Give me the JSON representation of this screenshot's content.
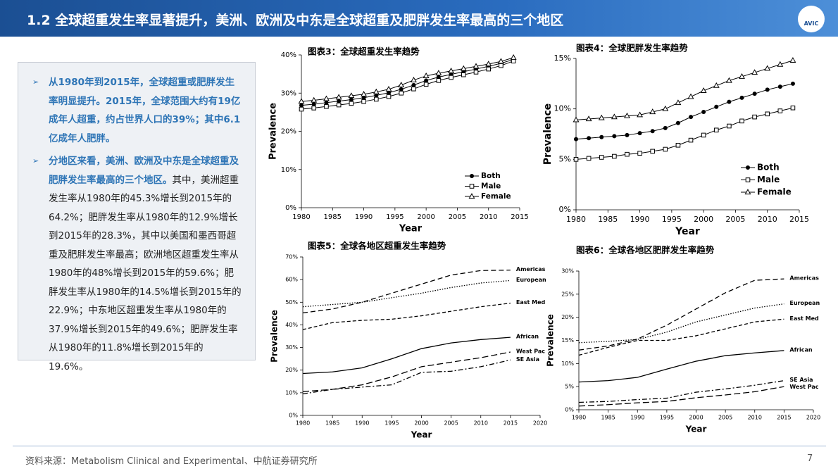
{
  "header": {
    "title": "1.2 全球超重发生率显著提升，美洲、欧洲及中东是全球超重及肥胖发生率最高的三个地区",
    "logo_text": "AVIC"
  },
  "summary": {
    "bullets": [
      {
        "runs": [
          {
            "text": "从1980年到2015年，全球超重或肥胖发生率明显提升。2015年，全球范围大约有19亿成年人超重，约占世界人口的39%；其中6.1亿成年人肥胖。",
            "bold": true
          }
        ]
      },
      {
        "runs": [
          {
            "text": "分地区来看，美洲、欧洲及中东是全球超重及肥胖发生率最高的三个地区。",
            "bold": true
          },
          {
            "text": "其中，美洲超重发生率从1980年的45.3%增长到2015年的64.2%；肥胖发生率从1980年的12.9%增长到2015年的28.3%，其中以美国和墨西哥超重及肥胖发生率最高；欧洲地区超重发生率从1980年的48%增长到2015年的59.6%；肥胖发生率从1980年的14.5%增长到2015年的22.9%；中东地区超重发生率从1980年的37.9%增长到2015年的49.6%；肥胖发生率从1980年的11.8%增长到2015年的19.6%。",
            "bold": false
          }
        ]
      }
    ]
  },
  "chart_data": [
    {
      "type": "line",
      "title": "图表3：全球超重发生率趋势",
      "xlabel": "Year",
      "ylabel": "Prevalence",
      "legend": "lower right",
      "x": [
        1980,
        1982,
        1984,
        1986,
        1988,
        1990,
        1992,
        1994,
        1996,
        1998,
        2000,
        2002,
        2004,
        2006,
        2008,
        2010,
        2012,
        2014
      ],
      "xlim": [
        1980,
        2015
      ],
      "xticks": [
        1980,
        1985,
        1990,
        1995,
        2000,
        2005,
        2010,
        2015
      ],
      "ylim": [
        0,
        40
      ],
      "yticks": [
        {
          "value": 0,
          "label": "0%"
        },
        {
          "value": 10,
          "label": "10%"
        },
        {
          "value": 20,
          "label": "20%"
        },
        {
          "value": 30,
          "label": "30%"
        },
        {
          "value": 40,
          "label": "40%"
        }
      ],
      "series": [
        {
          "name": "Both",
          "color": "#000000",
          "marker": "filled-circle",
          "values": [
            26.8,
            27.1,
            27.5,
            27.9,
            28.3,
            28.8,
            29.4,
            30.1,
            31.0,
            32.1,
            33.3,
            34.2,
            34.9,
            35.6,
            36.3,
            37.0,
            37.8,
            38.8
          ]
        },
        {
          "name": "Male",
          "color": "#000000",
          "marker": "open-square",
          "values": [
            25.8,
            26.1,
            26.5,
            26.9,
            27.3,
            27.8,
            28.4,
            29.1,
            30.0,
            31.1,
            32.3,
            33.3,
            34.1,
            34.8,
            35.5,
            36.3,
            37.2,
            38.4
          ]
        },
        {
          "name": "Female",
          "color": "#000000",
          "marker": "open-triangle",
          "values": [
            27.8,
            28.1,
            28.5,
            28.9,
            29.3,
            29.7,
            30.3,
            31.0,
            32.1,
            33.4,
            34.5,
            35.2,
            35.8,
            36.4,
            37.0,
            37.6,
            38.3,
            39.3
          ]
        }
      ]
    },
    {
      "type": "line",
      "title": "图表4：全球肥胖发生率趋势",
      "xlabel": "Year",
      "ylabel": "Prevalence",
      "legend": "lower right",
      "x": [
        1980,
        1982,
        1984,
        1986,
        1988,
        1990,
        1992,
        1994,
        1996,
        1998,
        2000,
        2002,
        2004,
        2006,
        2008,
        2010,
        2012,
        2014
      ],
      "xlim": [
        1980,
        2015
      ],
      "xticks": [
        1980,
        1985,
        1990,
        1995,
        2000,
        2005,
        2010,
        2015
      ],
      "ylim": [
        0,
        15
      ],
      "yticks": [
        {
          "value": 0,
          "label": "0%"
        },
        {
          "value": 5,
          "label": "5%"
        },
        {
          "value": 10,
          "label": "10%"
        },
        {
          "value": 15,
          "label": "15%"
        }
      ],
      "series": [
        {
          "name": "Both",
          "color": "#000000",
          "marker": "filled-circle",
          "values": [
            7.0,
            7.1,
            7.2,
            7.3,
            7.4,
            7.6,
            7.8,
            8.1,
            8.6,
            9.2,
            9.7,
            10.2,
            10.7,
            11.1,
            11.5,
            11.9,
            12.2,
            12.5
          ]
        },
        {
          "name": "Male",
          "color": "#000000",
          "marker": "open-square",
          "values": [
            5.0,
            5.1,
            5.2,
            5.3,
            5.5,
            5.6,
            5.8,
            6.0,
            6.4,
            6.9,
            7.4,
            7.9,
            8.3,
            8.8,
            9.2,
            9.5,
            9.8,
            10.1
          ]
        },
        {
          "name": "Female",
          "color": "#000000",
          "marker": "open-triangle",
          "values": [
            8.9,
            9.0,
            9.1,
            9.2,
            9.3,
            9.4,
            9.7,
            10.0,
            10.6,
            11.2,
            11.8,
            12.3,
            12.8,
            13.2,
            13.6,
            14.0,
            14.4,
            14.8
          ]
        }
      ]
    },
    {
      "type": "line",
      "title": "图表5：全球各地区超重发生率趋势",
      "xlabel": "Year",
      "ylabel": "Prevalence",
      "legend": "inline",
      "x": [
        1980,
        1985,
        1990,
        1995,
        2000,
        2005,
        2010,
        2015
      ],
      "xlim": [
        1980,
        2020
      ],
      "xticks": [
        1980,
        1985,
        1990,
        1995,
        2000,
        2005,
        2010,
        2015,
        2020
      ],
      "ylim": [
        0,
        70
      ],
      "yticks": [
        {
          "value": 0,
          "label": "0%"
        },
        {
          "value": 10,
          "label": "10%"
        },
        {
          "value": 20,
          "label": "20%"
        },
        {
          "value": 30,
          "label": "30%"
        },
        {
          "value": 40,
          "label": "40%"
        },
        {
          "value": 50,
          "label": "50%"
        },
        {
          "value": 60,
          "label": "60%"
        },
        {
          "value": 70,
          "label": "70%"
        }
      ],
      "series": [
        {
          "name": "Americas",
          "color": "#000000",
          "dash": "7,4",
          "values": [
            45.3,
            47,
            50,
            54,
            58,
            62,
            64,
            64.2
          ]
        },
        {
          "name": "European",
          "color": "#000000",
          "dash": "1.5,2",
          "values": [
            48,
            49,
            50,
            52,
            54,
            56.5,
            58.5,
            59.6
          ]
        },
        {
          "name": "East Med",
          "color": "#000000",
          "dash": "5,3",
          "values": [
            37.9,
            41,
            42,
            42.5,
            44,
            46,
            48,
            49.6
          ]
        },
        {
          "name": "African",
          "color": "#000000",
          "values": [
            18.5,
            19.2,
            21,
            25,
            29.5,
            32,
            33.5,
            34.5
          ]
        },
        {
          "name": "West Pac",
          "color": "#000000",
          "dash": "9,4",
          "values": [
            10.5,
            11.5,
            13.5,
            17,
            21.5,
            23.5,
            25.5,
            28
          ]
        },
        {
          "name": "SE Asia",
          "color": "#000000",
          "dash": "7,3,2,3",
          "values": [
            9.5,
            11.5,
            12.5,
            13.5,
            19,
            19.5,
            21.5,
            24.5
          ]
        }
      ]
    },
    {
      "type": "line",
      "title": "图表6：全球各地区肥胖发生率趋势",
      "xlabel": "Year",
      "ylabel": "Prevalence",
      "legend": "inline",
      "x": [
        1980,
        1985,
        1990,
        1995,
        2000,
        2005,
        2010,
        2015
      ],
      "xlim": [
        1980,
        2020
      ],
      "xticks": [
        1980,
        1985,
        1990,
        1995,
        2000,
        2005,
        2010,
        2015,
        2020
      ],
      "ylim": [
        0,
        30
      ],
      "yticks": [
        {
          "value": 0,
          "label": "0%"
        },
        {
          "value": 5,
          "label": "5%"
        },
        {
          "value": 10,
          "label": "10%"
        },
        {
          "value": 15,
          "label": "15%"
        },
        {
          "value": 20,
          "label": "20%"
        },
        {
          "value": 25,
          "label": "25%"
        },
        {
          "value": 30,
          "label": "30%"
        }
      ],
      "series": [
        {
          "name": "Americas",
          "color": "#000000",
          "dash": "7,4",
          "values": [
            12.9,
            13.8,
            15.3,
            18.3,
            21.8,
            25.3,
            28,
            28.3
          ]
        },
        {
          "name": "European",
          "color": "#000000",
          "dash": "1.5,2",
          "values": [
            14.5,
            14.8,
            15.2,
            16.8,
            19,
            20.5,
            22,
            22.9
          ]
        },
        {
          "name": "East Med",
          "color": "#000000",
          "dash": "5,3",
          "values": [
            11.8,
            13.5,
            15,
            15,
            16,
            17.5,
            19,
            19.6
          ]
        },
        {
          "name": "African",
          "color": "#000000",
          "values": [
            6,
            6.3,
            7,
            8.8,
            10.5,
            11.7,
            12.3,
            12.8
          ]
        },
        {
          "name": "SE Asia",
          "color": "#000000",
          "dash": "7,3,2,3",
          "values": [
            1.6,
            1.8,
            2.2,
            2.5,
            3.8,
            4.5,
            5.3,
            6.3
          ]
        },
        {
          "name": "West Pac",
          "color": "#000000",
          "dash": "9,4",
          "values": [
            0.8,
            1.1,
            1.5,
            1.8,
            2.6,
            3.2,
            3.9,
            5.0
          ]
        }
      ]
    }
  ],
  "footer": {
    "source": "资料来源：Metabolism Clinical and Experimental、中航证券研究所",
    "page": "7"
  }
}
